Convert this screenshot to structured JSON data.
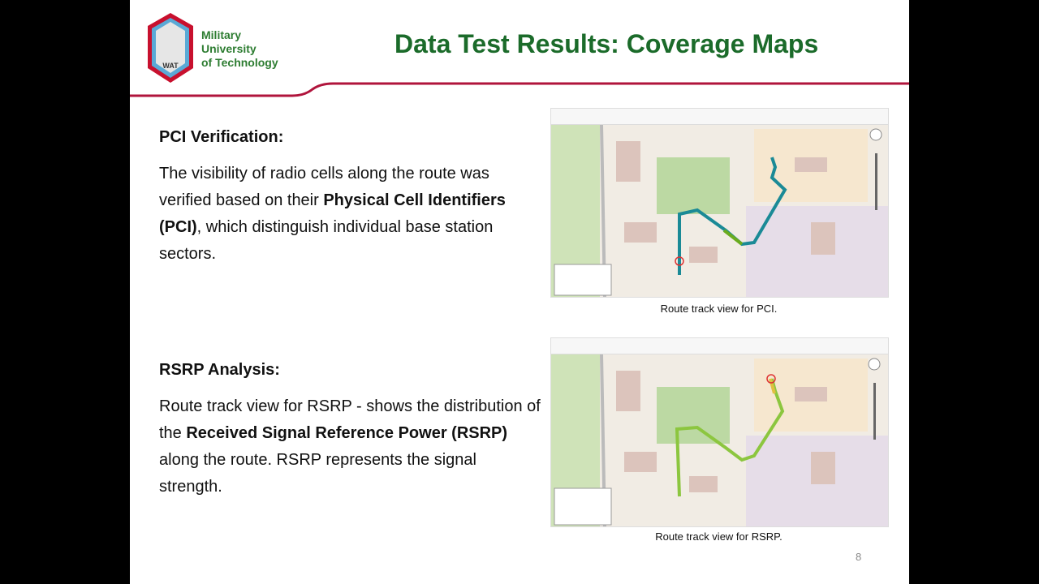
{
  "logo": {
    "emblem_text": "WAT",
    "lines": [
      "Military",
      "University",
      "of Technology"
    ]
  },
  "title": "Data Test Results: Coverage Maps",
  "sections": [
    {
      "heading": "PCI Verification:",
      "text_before": "The visibility of radio cells along the route was verified based on their ",
      "bold": "Physical Cell Identifiers (PCI)",
      "text_after": ", which distinguish individual base station sectors.",
      "caption": "Route track view for PCI."
    },
    {
      "heading": "RSRP Analysis:",
      "text_before": "Route track view for RSRP - shows the distribution of the ",
      "bold": "Received Signal Reference Power (RSRP)",
      "text_after": " along the route. RSRP represents the signal strength.",
      "caption": "Route track view for RSRP."
    }
  ],
  "colors": {
    "title": "#1b6b2a",
    "accent_line": "#b0143c",
    "pci_route": "#1a8a96",
    "rsrp_route": "#8cc63f"
  },
  "page_number": "8"
}
